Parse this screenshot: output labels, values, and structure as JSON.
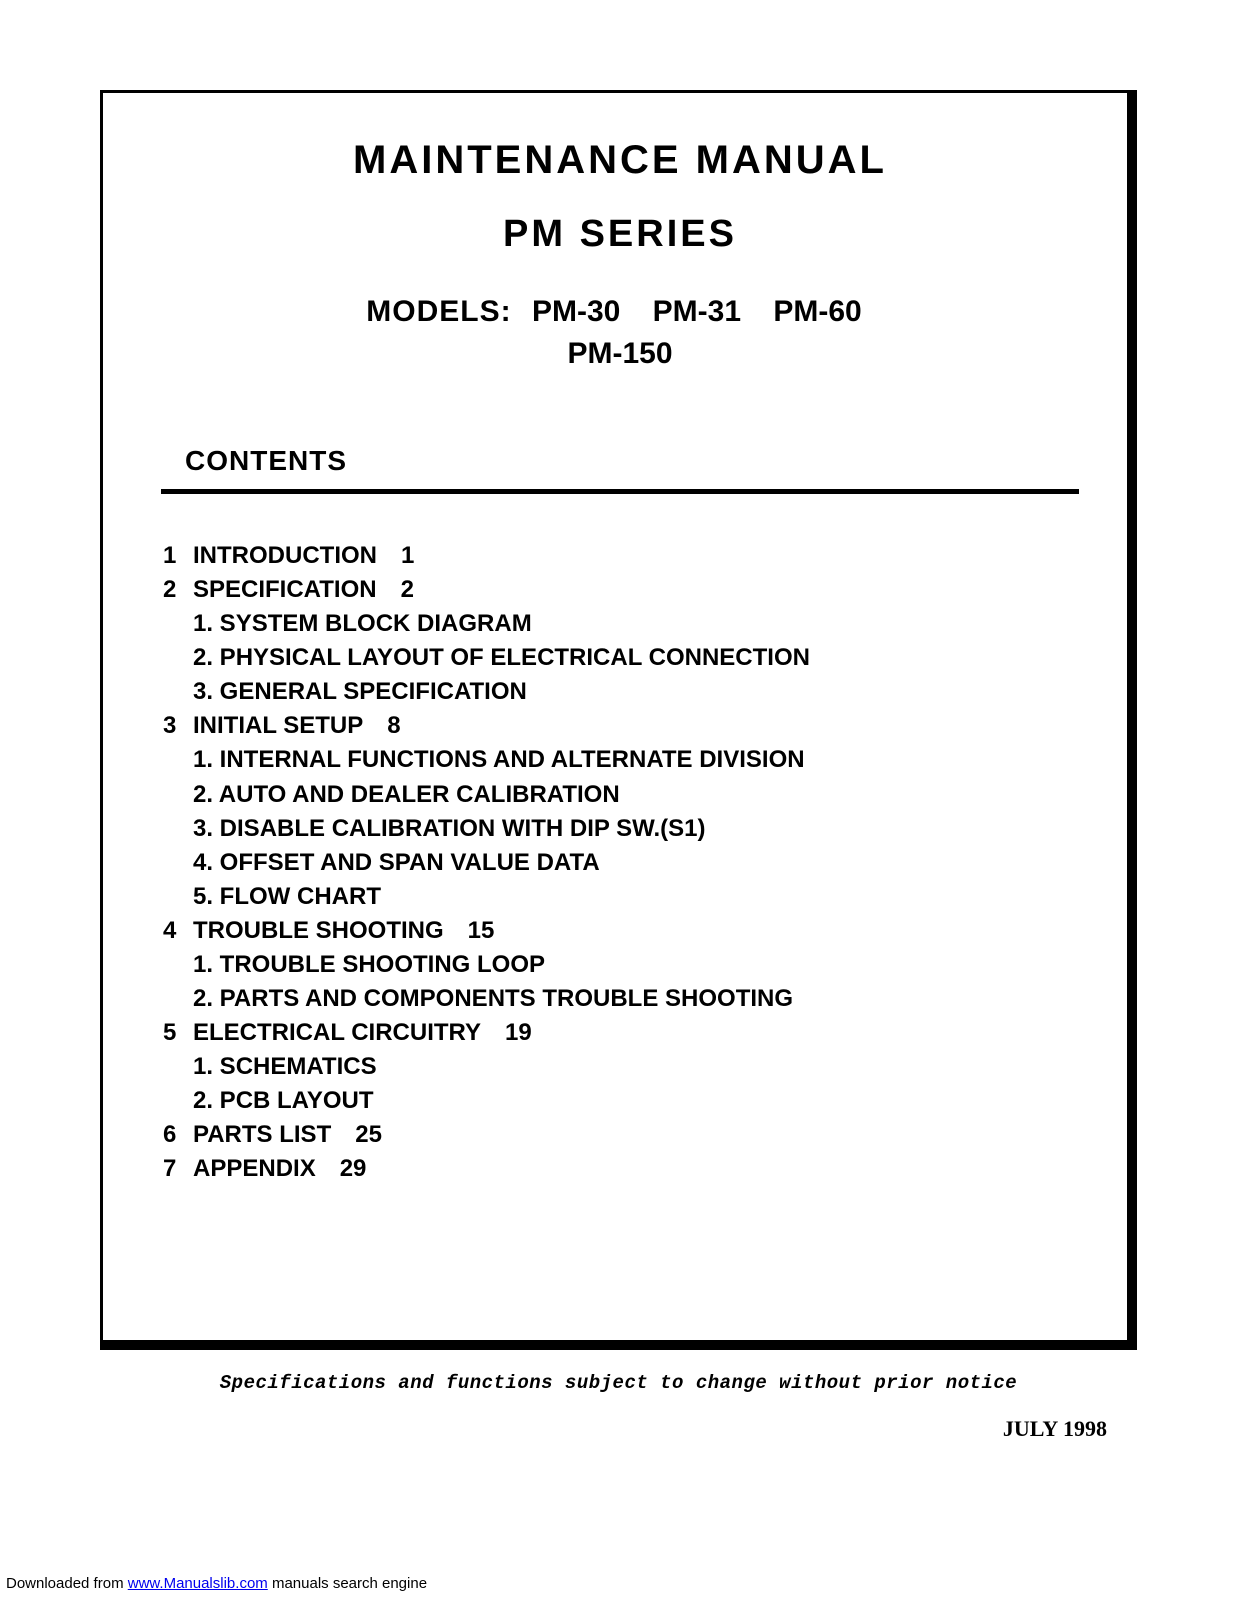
{
  "header": {
    "title_main": "MAINTENANCE  MANUAL",
    "title_series": "PM  SERIES",
    "models_label": "MODELS:",
    "models": [
      "PM-30",
      "PM-31",
      "PM-60",
      "PM-150"
    ]
  },
  "contents_heading": "CONTENTS",
  "toc": [
    {
      "num": "1",
      "title": "INTRODUCTION",
      "page": "1",
      "subs": []
    },
    {
      "num": "2",
      "title": "SPECIFICATION",
      "page": "2",
      "subs": [
        "1. SYSTEM BLOCK DIAGRAM",
        "2. PHYSICAL LAYOUT OF ELECTRICAL CONNECTION",
        "3. GENERAL SPECIFICATION"
      ]
    },
    {
      "num": "3",
      "title": "INITIAL  SETUP",
      "page": "8",
      "subs": [
        "1. INTERNAL FUNCTIONS AND ALTERNATE DIVISION",
        "2. AUTO AND DEALER CALIBRATION",
        "3. DISABLE CALIBRATION WITH DIP SW.(S1)",
        "4. OFFSET AND SPAN VALUE DATA",
        "5. FLOW CHART"
      ]
    },
    {
      "num": "4",
      "title": "TROUBLE  SHOOTING",
      "page": "15",
      "subs": [
        "1. TROUBLE SHOOTING LOOP",
        "2. PARTS AND COMPONENTS TROUBLE SHOOTING"
      ]
    },
    {
      "num": "5",
      "title": "ELECTRICAL CIRCUITRY",
      "page": "19",
      "subs": [
        "1. SCHEMATICS",
        "2. PCB LAYOUT"
      ]
    },
    {
      "num": "6",
      "title": "PARTS LIST",
      "page": "25",
      "subs": []
    },
    {
      "num": "7",
      "title": "APPENDIX",
      "page": "29",
      "subs": []
    }
  ],
  "footer_note": "Specifications and functions subject to change without prior notice",
  "date": "JULY 1998",
  "download": {
    "prefix": "Downloaded from ",
    "link_text": "www.Manualslib.com",
    "suffix": " manuals search engine"
  }
}
